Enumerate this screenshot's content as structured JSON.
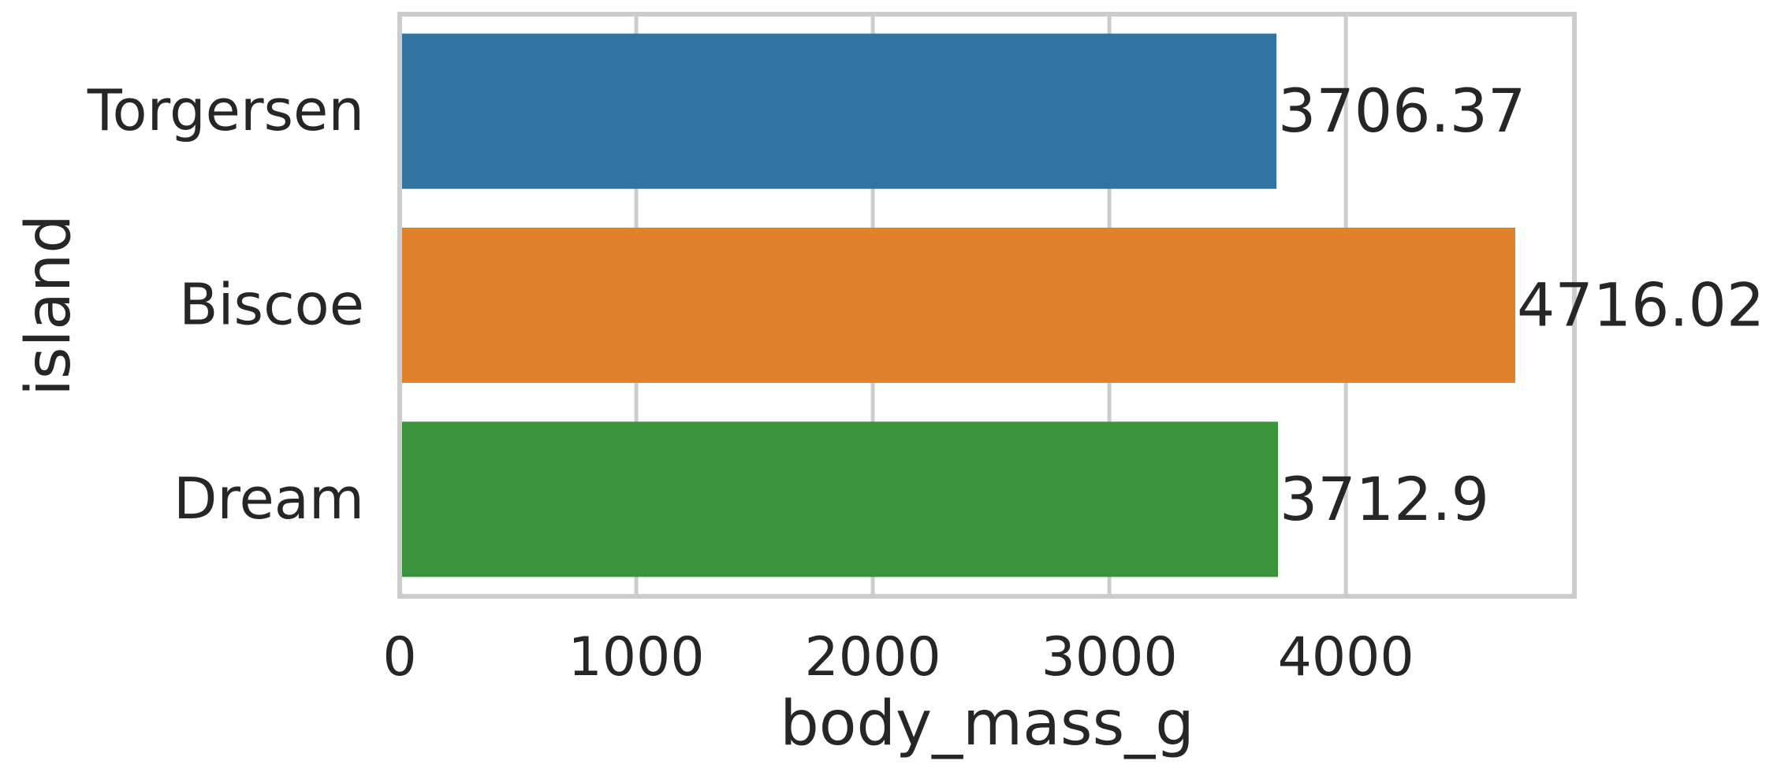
{
  "chart_data": {
    "type": "bar",
    "orientation": "horizontal",
    "categories": [
      "Torgersen",
      "Biscoe",
      "Dream"
    ],
    "values": [
      3706.37,
      4716.02,
      3712.9
    ],
    "value_labels": [
      "3706.37",
      "4716.02",
      "3712.9"
    ],
    "colors": [
      "#3274a1",
      "#e1812c",
      "#3a923a"
    ],
    "xlabel": "body_mass_g",
    "ylabel": "island",
    "xlim": [
      0,
      4966
    ],
    "xticks": [
      0,
      1000,
      2000,
      3000,
      4000
    ],
    "xtick_labels": [
      "0",
      "1000",
      "2000",
      "3000",
      "4000"
    ],
    "grid": true
  }
}
